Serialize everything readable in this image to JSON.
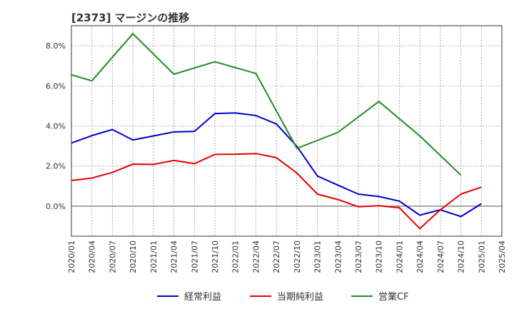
{
  "chart_data": {
    "type": "line",
    "title": "[2373]  マージンの推移",
    "x": [
      "2020/01",
      "2020/04",
      "2020/07",
      "2020/10",
      "2021/01",
      "2021/04",
      "2021/07",
      "2021/10",
      "2022/01",
      "2022/04",
      "2022/07",
      "2022/10",
      "2023/01",
      "2023/04",
      "2023/07",
      "2023/10",
      "2024/01",
      "2024/04",
      "2024/07",
      "2024/10",
      "2025/01",
      "2025/04"
    ],
    "ylim": [
      -1.5,
      9.0
    ],
    "yticks": [
      0.0,
      2.0,
      4.0,
      6.0,
      8.0
    ],
    "ytick_labels": [
      "0.0%",
      "2.0%",
      "4.0%",
      "6.0%",
      "8.0%"
    ],
    "grid": true,
    "legend_position": "bottom",
    "series": [
      {
        "name": "経常利益",
        "color": "#0000cc",
        "values": [
          3.15,
          3.52,
          3.82,
          3.3,
          3.5,
          3.7,
          3.73,
          4.62,
          4.65,
          4.52,
          4.1,
          2.98,
          1.5,
          1.05,
          0.6,
          0.48,
          0.25,
          -0.45,
          -0.18,
          -0.52,
          0.12,
          null
        ]
      },
      {
        "name": "当期純利益",
        "color": "#e60000",
        "values": [
          1.28,
          1.4,
          1.68,
          2.1,
          2.08,
          2.28,
          2.12,
          2.58,
          2.59,
          2.62,
          2.42,
          1.65,
          0.6,
          0.33,
          -0.03,
          0.02,
          -0.08,
          -1.12,
          -0.18,
          0.6,
          0.95,
          null
        ]
      },
      {
        "name": "営業CF",
        "color": "#228b22",
        "values": [
          6.55,
          6.25,
          null,
          8.6,
          null,
          6.58,
          null,
          7.2,
          null,
          6.62,
          null,
          2.88,
          null,
          3.68,
          null,
          5.22,
          null,
          3.5,
          null,
          1.55,
          null,
          null
        ]
      }
    ]
  }
}
